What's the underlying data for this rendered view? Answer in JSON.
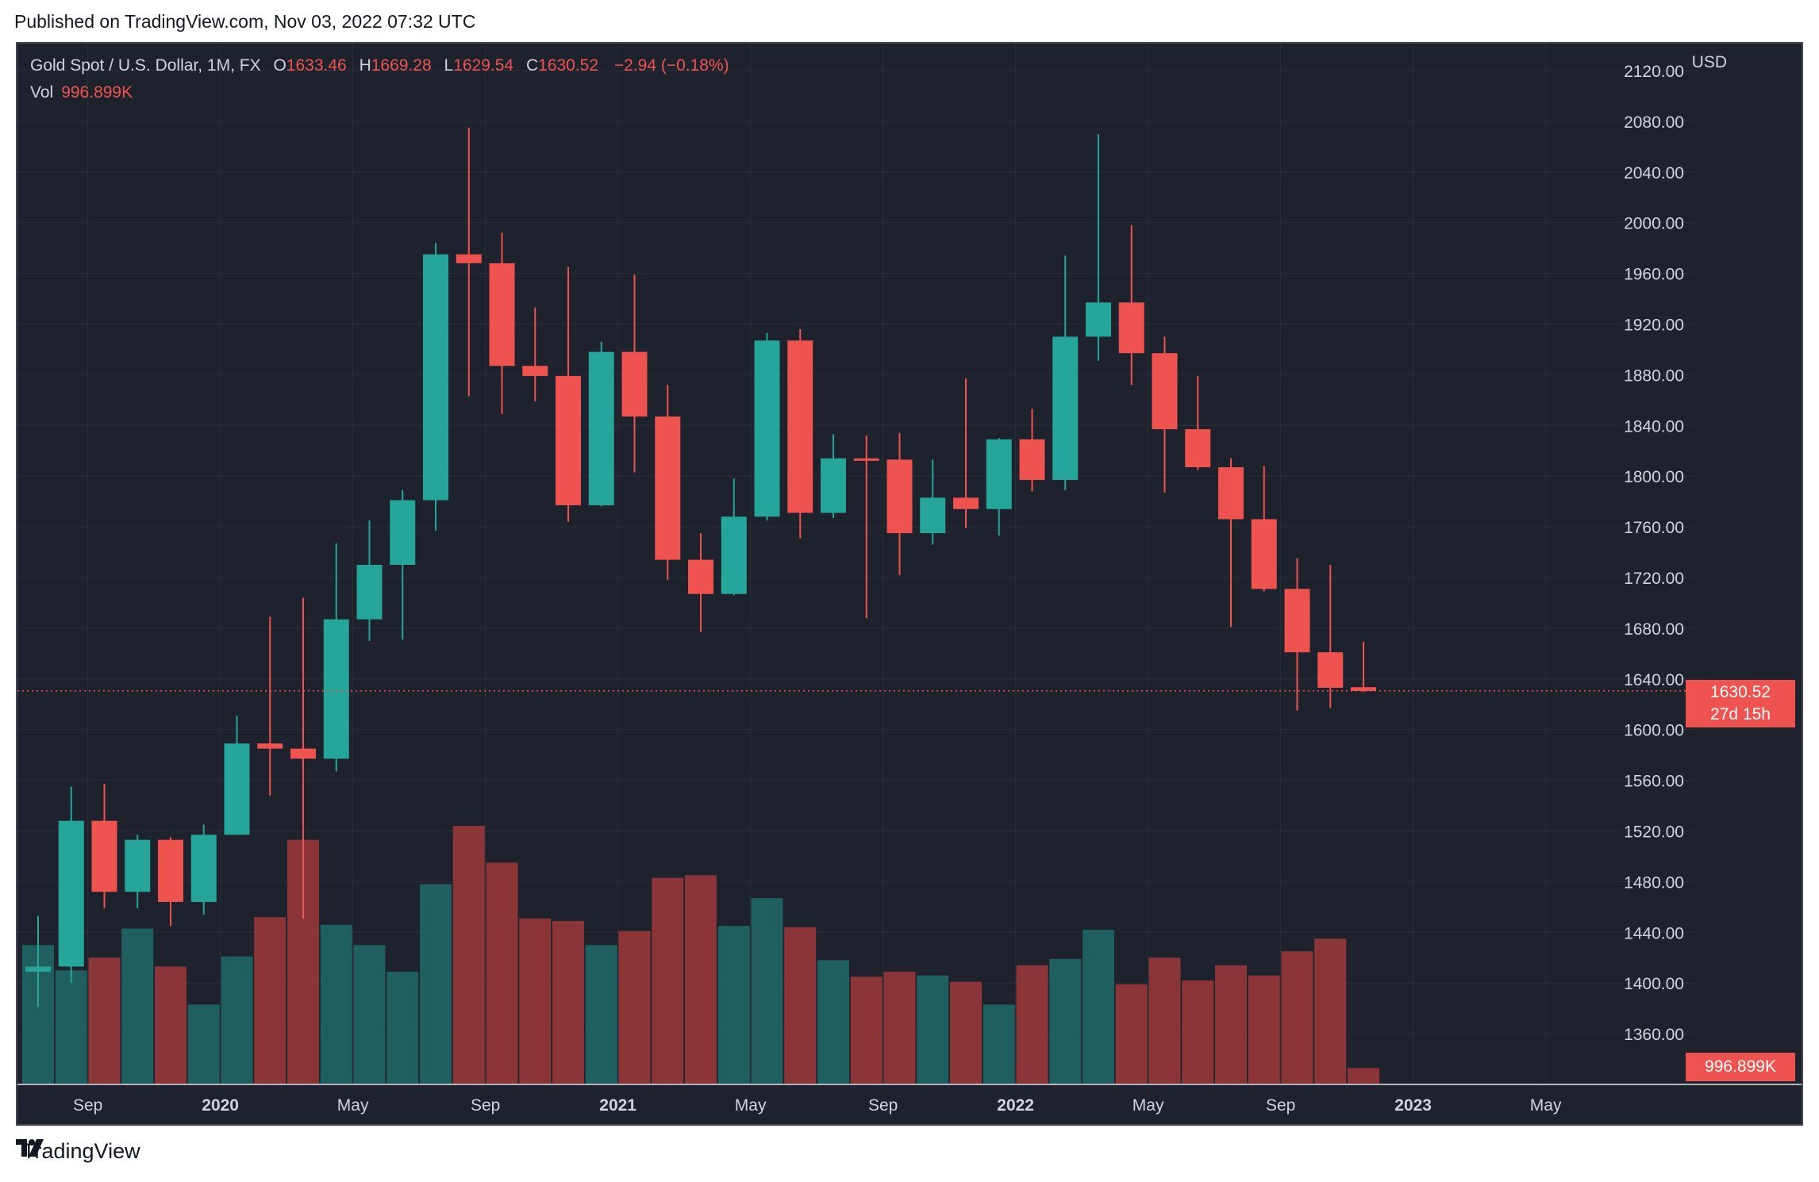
{
  "header": {
    "published": "Published on TradingView.com, Nov 03, 2022 07:32 UTC"
  },
  "legend": {
    "symbol": "Gold Spot / U.S. Dollar, 1M, FX",
    "o_label": "O",
    "o": "1633.46",
    "h_label": "H",
    "h": "1669.28",
    "l_label": "L",
    "l": "1629.54",
    "c_label": "C",
    "c": "1630.52",
    "change": "−2.94 (−0.18%)",
    "vol_label": "Vol",
    "vol": "996.899K"
  },
  "axis": {
    "currency": "USD",
    "last_price": "1630.52",
    "countdown": "27d 15h",
    "last_vol": "996.899K"
  },
  "footer": {
    "brand": "TradingView"
  },
  "colors": {
    "up": "#26a69a",
    "down": "#ef5350",
    "up_vol": "#1f5f5f",
    "down_vol": "#8b3539",
    "bg": "#1e222d",
    "grid": "#2a2e39",
    "text": "#d1d4dc"
  },
  "chart_data": {
    "type": "candlestick",
    "title": "Gold Spot / U.S. Dollar, 1M, FX",
    "ylabel": "USD",
    "ylim": [
      1320,
      2140
    ],
    "yticks": [
      1360,
      1400,
      1440,
      1480,
      1520,
      1560,
      1600,
      1640,
      1680,
      1720,
      1760,
      1800,
      1840,
      1880,
      1920,
      1960,
      2000,
      2040,
      2080,
      2120
    ],
    "xticks": [
      {
        "index": 1.5,
        "label": "Sep"
      },
      {
        "index": 5.5,
        "label": "2020"
      },
      {
        "index": 9.5,
        "label": "May"
      },
      {
        "index": 13.5,
        "label": "Sep"
      },
      {
        "index": 17.5,
        "label": "2021"
      },
      {
        "index": 21.5,
        "label": "May"
      },
      {
        "index": 25.5,
        "label": "Sep"
      },
      {
        "index": 29.5,
        "label": "2022"
      },
      {
        "index": 33.5,
        "label": "May"
      },
      {
        "index": 37.5,
        "label": "Sep"
      },
      {
        "index": 41.5,
        "label": "2023"
      },
      {
        "index": 45.5,
        "label": "May"
      }
    ],
    "candles": [
      {
        "date": "2019-07",
        "o": 1409,
        "h": 1453,
        "l": 1381,
        "c": 1413
      },
      {
        "date": "2019-08",
        "o": 1413,
        "h": 1555,
        "l": 1400,
        "c": 1528
      },
      {
        "date": "2019-09",
        "o": 1528,
        "h": 1557,
        "l": 1459,
        "c": 1472
      },
      {
        "date": "2019-10",
        "o": 1472,
        "h": 1517,
        "l": 1459,
        "c": 1513
      },
      {
        "date": "2019-11",
        "o": 1513,
        "h": 1515,
        "l": 1445,
        "c": 1464
      },
      {
        "date": "2019-12",
        "o": 1464,
        "h": 1525,
        "l": 1454,
        "c": 1517
      },
      {
        "date": "2020-01",
        "o": 1517,
        "h": 1611,
        "l": 1517,
        "c": 1589
      },
      {
        "date": "2020-02",
        "o": 1589,
        "h": 1689,
        "l": 1548,
        "c": 1585
      },
      {
        "date": "2020-03",
        "o": 1585,
        "h": 1704,
        "l": 1451,
        "c": 1577
      },
      {
        "date": "2020-04",
        "o": 1577,
        "h": 1747,
        "l": 1567,
        "c": 1687
      },
      {
        "date": "2020-05",
        "o": 1687,
        "h": 1765,
        "l": 1670,
        "c": 1730
      },
      {
        "date": "2020-06",
        "o": 1730,
        "h": 1789,
        "l": 1671,
        "c": 1781
      },
      {
        "date": "2020-07",
        "o": 1781,
        "h": 1984,
        "l": 1757,
        "c": 1975
      },
      {
        "date": "2020-08",
        "o": 1975,
        "h": 2075,
        "l": 1863,
        "c": 1968
      },
      {
        "date": "2020-09",
        "o": 1968,
        "h": 1992,
        "l": 1849,
        "c": 1887
      },
      {
        "date": "2020-10",
        "o": 1887,
        "h": 1933,
        "l": 1859,
        "c": 1879
      },
      {
        "date": "2020-11",
        "o": 1879,
        "h": 1965,
        "l": 1764,
        "c": 1777
      },
      {
        "date": "2020-12",
        "o": 1777,
        "h": 1906,
        "l": 1776,
        "c": 1898
      },
      {
        "date": "2021-01",
        "o": 1898,
        "h": 1959,
        "l": 1803,
        "c": 1847
      },
      {
        "date": "2021-02",
        "o": 1847,
        "h": 1872,
        "l": 1718,
        "c": 1734
      },
      {
        "date": "2021-03",
        "o": 1734,
        "h": 1755,
        "l": 1677,
        "c": 1707
      },
      {
        "date": "2021-04",
        "o": 1707,
        "h": 1798,
        "l": 1706,
        "c": 1768
      },
      {
        "date": "2021-05",
        "o": 1768,
        "h": 1913,
        "l": 1765,
        "c": 1907
      },
      {
        "date": "2021-06",
        "o": 1907,
        "h": 1916,
        "l": 1751,
        "c": 1771
      },
      {
        "date": "2021-07",
        "o": 1771,
        "h": 1833,
        "l": 1767,
        "c": 1814
      },
      {
        "date": "2021-08",
        "o": 1814,
        "h": 1832,
        "l": 1688,
        "c": 1813
      },
      {
        "date": "2021-09",
        "o": 1813,
        "h": 1834,
        "l": 1722,
        "c": 1755
      },
      {
        "date": "2021-10",
        "o": 1755,
        "h": 1813,
        "l": 1746,
        "c": 1783
      },
      {
        "date": "2021-11",
        "o": 1783,
        "h": 1877,
        "l": 1759,
        "c": 1774
      },
      {
        "date": "2021-12",
        "o": 1774,
        "h": 1830,
        "l": 1753,
        "c": 1829
      },
      {
        "date": "2022-01",
        "o": 1829,
        "h": 1853,
        "l": 1788,
        "c": 1797
      },
      {
        "date": "2022-02",
        "o": 1797,
        "h": 1974,
        "l": 1789,
        "c": 1910
      },
      {
        "date": "2022-03",
        "o": 1910,
        "h": 2070,
        "l": 1891,
        "c": 1937
      },
      {
        "date": "2022-04",
        "o": 1937,
        "h": 1998,
        "l": 1872,
        "c": 1897
      },
      {
        "date": "2022-05",
        "o": 1897,
        "h": 1910,
        "l": 1787,
        "c": 1837
      },
      {
        "date": "2022-06",
        "o": 1837,
        "h": 1879,
        "l": 1805,
        "c": 1807
      },
      {
        "date": "2022-07",
        "o": 1807,
        "h": 1814,
        "l": 1681,
        "c": 1766
      },
      {
        "date": "2022-08",
        "o": 1766,
        "h": 1808,
        "l": 1709,
        "c": 1711
      },
      {
        "date": "2022-09",
        "o": 1711,
        "h": 1735,
        "l": 1615,
        "c": 1661
      },
      {
        "date": "2022-10",
        "o": 1661,
        "h": 1730,
        "l": 1617,
        "c": 1633
      },
      {
        "date": "2022-11",
        "o": 1633.46,
        "h": 1669.28,
        "l": 1629.54,
        "c": 1630.52
      }
    ],
    "volume": [
      1430,
      1410,
      1420,
      1443,
      1413,
      1383,
      1421,
      1452,
      1513,
      1446,
      1430,
      1409,
      1478,
      1524,
      1495,
      1451,
      1449,
      1430,
      1441,
      1483,
      1485,
      1445,
      1467,
      1444,
      1418,
      1405,
      1409,
      1406,
      1401,
      1383,
      1414,
      1419,
      1442,
      1399,
      1420,
      1402,
      1414,
      1406,
      1425,
      1435,
      1333
    ],
    "volume_unit": "relative scale (price-axis units)"
  }
}
